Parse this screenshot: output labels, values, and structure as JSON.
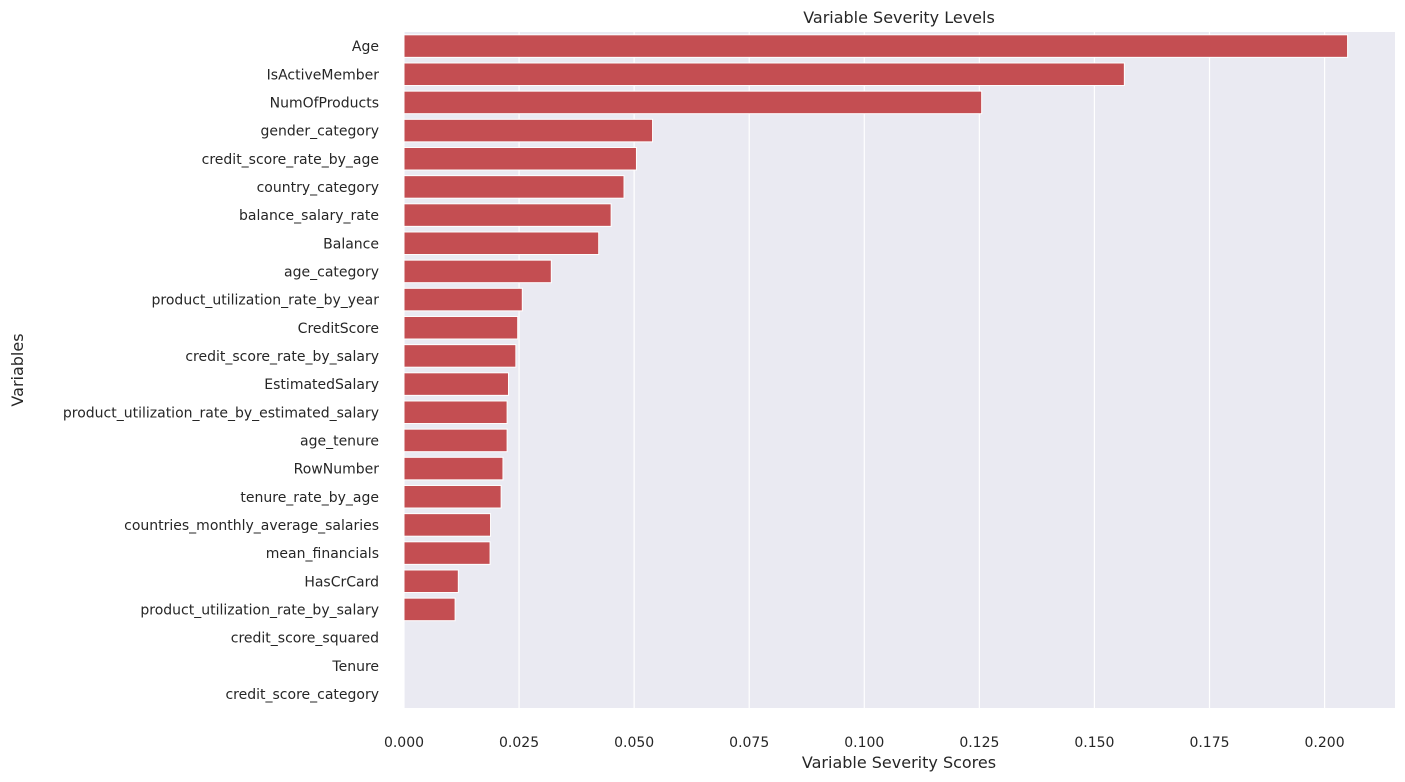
{
  "chart_data": {
    "type": "bar",
    "orientation": "horizontal",
    "title": "Variable Severity Levels",
    "xlabel": "Variable Severity Scores",
    "ylabel": "Variables",
    "categories": [
      "Age",
      "IsActiveMember",
      "NumOfProducts",
      "gender_category",
      "credit_score_rate_by_age",
      "country_category",
      "balance_salary_rate",
      "Balance",
      "age_category",
      "product_utilization_rate_by_year",
      "CreditScore",
      "credit_score_rate_by_salary",
      "EstimatedSalary",
      "product_utilization_rate_by_estimated_salary",
      "age_tenure",
      "RowNumber",
      "tenure_rate_by_age",
      "countries_monthly_average_salaries",
      "mean_financials",
      "HasCrCard",
      "product_utilization_rate_by_salary",
      "credit_score_squared",
      "Tenure",
      "credit_score_category"
    ],
    "values": [
      0.205,
      0.1565,
      0.1255,
      0.054,
      0.0505,
      0.0478,
      0.045,
      0.0423,
      0.032,
      0.0257,
      0.0247,
      0.0243,
      0.0227,
      0.0224,
      0.0224,
      0.0215,
      0.0211,
      0.0188,
      0.0187,
      0.0118,
      0.0111,
      0,
      0,
      0
    ],
    "xticks": [
      "0.000",
      "0.025",
      "0.050",
      "0.075",
      "0.100",
      "0.125",
      "0.150",
      "0.175",
      "0.200"
    ],
    "xlim": [
      0,
      0.2153
    ],
    "grid": true,
    "colors": {
      "bar": "#c44e52",
      "plot_background": "#eaeaf2",
      "grid": "#ffffff",
      "text": "#262626"
    }
  }
}
